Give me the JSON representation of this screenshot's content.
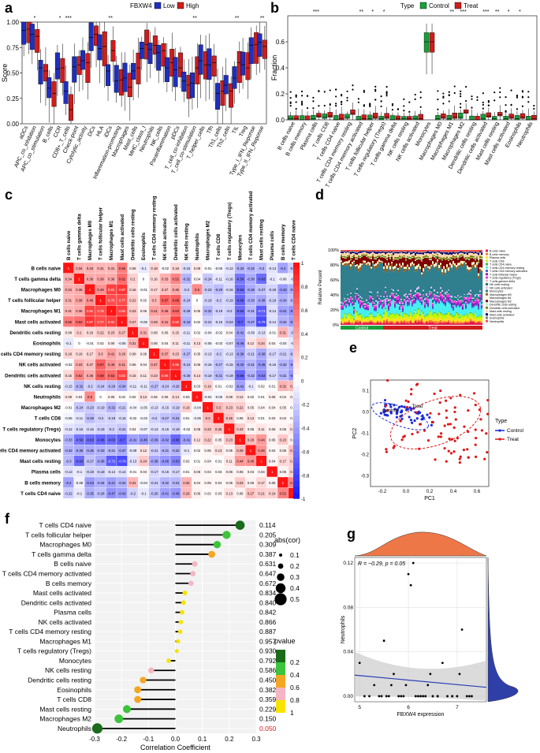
{
  "panel_labels": {
    "a": "a",
    "b": "b",
    "c": "c",
    "d": "d",
    "e": "e",
    "f": "f",
    "g": "g"
  },
  "chart_data": [
    {
      "panel": "a",
      "type": "box",
      "legend_title": "FBXW4",
      "series_names": [
        "Low",
        "High"
      ],
      "colors": {
        "Low": "#1f2fbf",
        "High": "#d01c1c"
      },
      "ylabel": "Score",
      "ylim": [
        0,
        1.0
      ],
      "yticks": [
        "0.00",
        "0.25",
        "0.50",
        "0.75",
        "1.00"
      ],
      "categories": [
        "aDCs",
        "APC_co_inhibition",
        "APC_co_stimulation",
        "B_cells",
        "CCR",
        "CD8+_T_cells",
        "Check-point",
        "Cytolytic_activity",
        "DCs",
        "HLA",
        "iDCs",
        "Inflammation-promoting",
        "Macrophages",
        "Mast_cells",
        "MHC_class_I",
        "Neutrophils",
        "NK_cells",
        "Parainflammation",
        "pDCs",
        "T_cell_co-inhibition",
        "T_cell_co-stimulation",
        "T_helper_cells",
        "Tfh",
        "Th1_cells",
        "Th2_cells",
        "TIL",
        "Treg",
        "Type_I_IFN_Reponse",
        "Type_II_IFN_Reponse"
      ],
      "significance": [
        "",
        "*",
        "",
        "",
        "*",
        "***",
        "",
        "",
        "",
        "",
        "**",
        "",
        "",
        "",
        "",
        "",
        "",
        "",
        "",
        "",
        "**",
        "",
        "",
        "",
        "",
        "**",
        "",
        "",
        "**"
      ],
      "low_median": [
        0.92,
        0.88,
        0.55,
        0.35,
        0.54,
        0.32,
        0.56,
        0.62,
        0.85,
        0.74,
        0.52,
        0.42,
        0.45,
        0.52,
        0.74,
        0.73,
        0.7,
        0.55,
        0.53,
        0.42,
        0.4,
        0.62,
        0.58,
        0.3,
        0.38,
        0.45,
        0.58,
        0.77,
        0.8
      ],
      "high_median": [
        0.93,
        0.86,
        0.52,
        0.3,
        0.55,
        0.14,
        0.58,
        0.6,
        0.88,
        0.76,
        0.72,
        0.43,
        0.36,
        0.55,
        0.78,
        0.77,
        0.72,
        0.6,
        0.55,
        0.38,
        0.55,
        0.58,
        0.6,
        0.32,
        0.32,
        0.6,
        0.55,
        0.78,
        0.76
      ]
    },
    {
      "panel": "b",
      "type": "box",
      "legend_title": "Type",
      "series_names": [
        "Control",
        "Treat"
      ],
      "colors": {
        "Control": "#1a9e3a",
        "Treat": "#d01c1c"
      },
      "ylabel": "Fraction",
      "ylim": [
        0,
        0.8
      ],
      "yticks": [
        "0.0",
        "0.2",
        "0.4",
        "0.6"
      ],
      "categories": [
        "B cells naive",
        "B cells memory",
        "Plasma cells",
        "T cells CD8",
        "T cells CD4 naive",
        "T cells CD4 memory resting",
        "T cells CD4 memory activated",
        "T cells follicular helper",
        "T cells regulatory (Tregs)",
        "T cells gamma delta",
        "NK cells resting",
        "NK cells activated",
        "Monocytes",
        "Macrophages M0",
        "Macrophages M1",
        "Macrophages M2",
        "Dendritic cells resting",
        "Dendritic cells activated",
        "Mast cells resting",
        "Mast cells activated",
        "Eosinophils",
        "Neutrophils"
      ],
      "significance": [
        "",
        "",
        "***",
        "",
        "",
        "",
        "**",
        "*",
        "*",
        "",
        "",
        "",
        "",
        "",
        "**",
        "***",
        "",
        "***",
        "**",
        "*",
        "*",
        ""
      ],
      "control_median": [
        0.01,
        0.0,
        0.01,
        0.02,
        0.0,
        0.02,
        0.0,
        0.01,
        0.01,
        0.0,
        0.01,
        0.01,
        0.6,
        0.01,
        0.01,
        0.02,
        0.0,
        0.01,
        0.01,
        0.01,
        0.01,
        0.0
      ],
      "treat_median": [
        0.01,
        0.0,
        0.03,
        0.03,
        0.01,
        0.05,
        0.01,
        0.02,
        0.02,
        0.01,
        0.01,
        0.01,
        0.6,
        0.02,
        0.02,
        0.06,
        0.0,
        0.03,
        0.04,
        0.02,
        0.02,
        0.01
      ]
    },
    {
      "panel": "c",
      "type": "heatmap",
      "colorbar_ticks": [
        "1",
        "0.8",
        "0.6",
        "0.4",
        "0.2",
        "0",
        "-0.2",
        "-0.4",
        "-0.6",
        "-0.8",
        "-1"
      ],
      "labels": [
        "B cells naive",
        "T cells gamma delta",
        "Macrophages M0",
        "T cells follicular helper",
        "Macrophages M1",
        "Mast cells activated",
        "Dendritic cells resting",
        "Eosinophils",
        "T cells CD4 memory resting",
        "NK cells activated",
        "Dendritic cells activated",
        "NK cells resting",
        "Neutrophils",
        "Macrophages M2",
        "T cells CD8",
        "T cells regulatory (Tregs)",
        "Monocytes",
        "T cells CD4 memory activated",
        "Mast cells resting",
        "Plasma cells",
        "B cells memory",
        "T cells CD4 naive"
      ]
    },
    {
      "panel": "d",
      "type": "stacked-bar",
      "ylabel": "Relative Percent",
      "yticks": [
        "100%",
        "80%",
        "60%",
        "40%",
        "20%",
        "0%"
      ],
      "groups": [
        "Control",
        "Treat"
      ],
      "legend": [
        "B cells naive",
        "B cells memory",
        "Plasma cells",
        "T cells CD8",
        "T cells CD4 naive",
        "T cells CD4 memory resting",
        "T cells CD4 memory activated",
        "T cells follicular helper",
        "T cells regulatory (Tregs)",
        "T cells gamma delta",
        "NK cells resting",
        "NK cells activated",
        "Monocytes",
        "Macrophages M0",
        "Macrophages M1",
        "Macrophages M2",
        "Dendritic cells resting",
        "Dendritic cells activated",
        "Mast cells resting",
        "Mast cells activated",
        "Eosinophils",
        "Neutrophils"
      ],
      "colors": [
        "#e6194b",
        "#f58231",
        "#ffe119",
        "#bcf60c",
        "#3cb44b",
        "#46f0f0",
        "#4363d8",
        "#911eb4",
        "#f032e6",
        "#fabebe",
        "#008080",
        "#e6beff",
        "#2f7f8f",
        "#9a6324",
        "#fffac8",
        "#800000",
        "#aaffc3",
        "#808000",
        "#ffd8b1",
        "#000075",
        "#808080",
        "#ff4d4d"
      ]
    },
    {
      "panel": "e",
      "type": "scatter",
      "xlabel": "PC1",
      "ylabel": "PC2",
      "xticks": [
        "-0.2",
        "0.0",
        "0.2",
        "0.4",
        "0.6"
      ],
      "yticks": [
        "0.1",
        "0.0",
        "-0.1",
        "-0.2",
        "-0.3"
      ],
      "legend_title": "Type",
      "legend": [
        "Control",
        "Treat"
      ],
      "group_labels": [
        "Control",
        "Treat"
      ],
      "colors": {
        "Control": "#1a2bd9",
        "Treat": "#e01818"
      }
    },
    {
      "panel": "f",
      "type": "lollipop",
      "xlabel": "Correlation Coefficient",
      "xlim": [
        -0.3,
        0.3
      ],
      "xticks": [
        "-0.3",
        "-0.2",
        "-0.1",
        "0.0",
        "0.1",
        "0.2",
        "0.3"
      ],
      "size_legend_title": "abs(cor)",
      "size_legend": [
        "0.1",
        "0.2",
        "0.3",
        "0.4",
        "0.5"
      ],
      "color_legend_title": "pvalue",
      "color_legend": [
        "0.2",
        "0.4",
        "0.6",
        "0.8",
        "1"
      ],
      "color_scale": [
        "#1a6b1a",
        "#3cc43c",
        "#f5a623",
        "#f4b6c2",
        "#f7e300"
      ],
      "cells": [
        "T cells CD4 naive",
        "T cells follicular helper",
        "Macrophages M0",
        "T cells gamma delta",
        "B cells naive",
        "T cells CD4 memory activated",
        "B cells memory",
        "Mast cells activated",
        "Dendritic cells activated",
        "Plasma cells",
        "NK cells activated",
        "T cells CD4 memory resting",
        "Macrophages M1",
        "T cells regulatory (Tregs)",
        "Monocytes",
        "NK cells resting",
        "Dendritic cells resting",
        "Eosinophils",
        "T cells CD8",
        "Mast cells resting",
        "Macrophages M2",
        "Neutrophils"
      ],
      "cor": [
        0.24,
        0.19,
        0.155,
        0.135,
        0.072,
        0.065,
        0.058,
        0.035,
        0.03,
        0.025,
        0.02,
        0.018,
        0.01,
        0.005,
        -0.025,
        -0.09,
        -0.12,
        -0.14,
        -0.14,
        -0.18,
        -0.21,
        -0.29
      ],
      "pvalue": [
        "0.114",
        "0.205",
        "0.309",
        "0.387",
        "0.631",
        "0.647",
        "0.672",
        "0.834",
        "0.840",
        "0.842",
        "0.866",
        "0.887",
        "0.957",
        "0.930",
        "0.792",
        "0.586",
        "0.450",
        "0.382",
        "0.359",
        "0.229",
        "0.150",
        "0.050"
      ]
    },
    {
      "panel": "g",
      "type": "scatter",
      "xlabel": "FBXW4 expression",
      "ylabel": "Neutrophils",
      "annotation": "R = −0.29, p = 0.05",
      "xticks": [
        "5",
        "6",
        "7"
      ],
      "yticks": [
        "0.00",
        "0.04",
        "0.08",
        "0.12"
      ],
      "x": [
        5.0,
        5.1,
        5.2,
        5.3,
        5.4,
        5.5,
        5.6,
        5.7,
        5.8,
        5.9,
        6.0,
        6.1,
        6.2,
        6.3,
        6.4,
        6.5,
        6.6,
        6.7,
        6.8,
        6.9,
        7.0,
        7.1,
        7.2,
        7.3,
        5.45,
        5.65,
        5.85,
        6.05,
        6.25,
        6.45,
        6.6,
        6.15,
        5.95,
        5.55,
        6.35,
        7.05,
        7.25,
        6.9
      ],
      "y": [
        0.03,
        0.0,
        0.0,
        0.01,
        0.0,
        0.05,
        0.0,
        0.02,
        0.0,
        0.0,
        0.11,
        0.12,
        0.0,
        0.0,
        0.01,
        0.0,
        0.0,
        0.03,
        0.0,
        0.0,
        0.0,
        0.06,
        0.0,
        0.0,
        0.0,
        0.01,
        0.0,
        0.1,
        0.0,
        0.02,
        0.0,
        0.0,
        0.01,
        0.0,
        0.0,
        0.02,
        0.0,
        0.0
      ],
      "fit": {
        "x": [
          4.9,
          7.6
        ],
        "y": [
          0.019,
          0.008
        ]
      }
    }
  ],
  "heatmap_rows": [
    [
      "1",
      "0.34",
      "0.34",
      "0.31",
      "0.31",
      "0.56",
      "0.08",
      "-0.1",
      "0.18",
      "-0.02",
      "0.16",
      "-0.15",
      "0.09",
      "-0.01",
      "-0.05",
      "-0.12",
      "-0.33",
      "-0.32",
      "-0.3",
      "-0.13",
      "-0.4",
      "-0.22"
    ],
    [
      "0.34",
      "1",
      "0.36",
      "0.38",
      "0.36",
      "0.62",
      "0.2",
      "0",
      "0.16",
      "0.33",
      "0.52",
      "-0.32",
      "0.04",
      "-0.24",
      "-0.11",
      "-0.16",
      "-0.59",
      "-0.36",
      "-0.63",
      "-0.1",
      "-0.06",
      "-0.1"
    ],
    [
      "0.34",
      "0.36",
      "1",
      "0.46",
      "0.81",
      "0.87",
      "0.16",
      "-0.01",
      "0.17",
      "0.27",
      "0.36",
      "-0.2",
      "0.5",
      "-0.23",
      "-0.29",
      "-0.16",
      "-0.63",
      "-0.36",
      "-0.27",
      "-0.19",
      "-0.43",
      "-0.35"
    ],
    [
      "0.31",
      "0.38",
      "0.46",
      "1",
      "0.76",
      "0.77",
      "0.22",
      "0.02",
      "0.3",
      "0.67",
      "0.68",
      "-0.24",
      "0",
      "-0.19",
      "-0.2",
      "-0.19",
      "-0.66",
      "-0.33",
      "-0.38",
      "-0.19",
      "-0.34",
      "-0.28"
    ],
    [
      "0.31",
      "0.36",
      "0.81",
      "0.76",
      "1",
      "0.82",
      "0.23",
      "0.06",
      "0.41",
      "0.46",
      "0.63",
      "-0.28",
      "0.05",
      "-0.32",
      "-0.19",
      "-0.2",
      "-0.63",
      "-0.31",
      "-0.71",
      "-0.14",
      "-0.41",
      "-0.47"
    ],
    [
      "0.56",
      "0.62",
      "0.87",
      "0.77",
      "0.82",
      "1",
      "0.27",
      "-0.06",
      "0.29",
      "0.41",
      "0.82",
      "-0.34",
      "0.02",
      "-0.21",
      "-0.15",
      "-0.24",
      "-0.7",
      "-0.37",
      "-0.79",
      "-0.14",
      "-0.34",
      "-0.42"
    ],
    [
      "0.08",
      "0.2",
      "0.16",
      "0.22",
      "0.23",
      "0.27",
      "1",
      "0.31",
      "0.08",
      "0.06",
      "0.15",
      "-0.11",
      "0.02",
      "-0.04",
      "-0.02",
      "0.04",
      "-0.41",
      "-0.09",
      "-0.13",
      "-0.01",
      "0.31",
      "-0.2"
    ],
    [
      "-0.1",
      "0",
      "-0.01",
      "0.02",
      "0.06",
      "-0.06",
      "0.31",
      "1",
      "0.06",
      "0.04",
      "0.11",
      "-0.11",
      "0.13",
      "-0.05",
      "-0.03",
      "-0.07",
      "-0.46",
      "0.12",
      "0.24",
      "0.04",
      "-0.04",
      "-0.1"
    ],
    [
      "0.18",
      "0.16",
      "0.17",
      "0.3",
      "0.41",
      "0.29",
      "0.08",
      "0.06",
      "1",
      "0.37",
      "0.23",
      "-0.27",
      "0.05",
      "-0.13",
      "-0.2",
      "-0.13",
      "-0.39",
      "-0.21",
      "-0.38",
      "-0.17",
      "-0.21",
      "-0.26"
    ],
    [
      "-0.02",
      "0.33",
      "0.27",
      "0.67",
      "0.46",
      "0.41",
      "0.06",
      "0.04",
      "0.37",
      "1",
      "0.85",
      "-0.24",
      "0.06",
      "-0.15",
      "-0.27",
      "-0.15",
      "-0.42",
      "-0.31",
      "-0.45",
      "-0.15",
      "-0.32",
      "-0.41"
    ],
    [
      "0.16",
      "0.52",
      "0.36",
      "0.68",
      "0.63",
      "0.82",
      "0.15",
      "0.11",
      "0.23",
      "0.85",
      "1",
      "-0.26",
      "0.14",
      "-0.19",
      "-0.31",
      "-0.19",
      "-0.66",
      "-0.32",
      "-0.53",
      "-0.17",
      "-0.31",
      "-0.45"
    ],
    [
      "-0.15",
      "-0.32",
      "-0.2",
      "-0.24",
      "-0.28",
      "-0.34",
      "-0.11",
      "-0.11",
      "-0.27",
      "-0.24",
      "-0.26",
      "1",
      "0.03",
      "0.19",
      "0.01",
      "-0.02",
      "-0.41",
      "-0.1",
      "0.02",
      "0.01",
      "0.32",
      "0.29"
    ],
    [
      "0.09",
      "0.04",
      "0.5",
      "0",
      "0.05",
      "0.02",
      "0.02",
      "0.13",
      "0.05",
      "0.06",
      "0.14",
      "0.03",
      "1",
      "-0.04",
      "-0.05",
      "0.08",
      "0.12",
      "0.02",
      "0.01",
      "0.06",
      "0.04",
      "0.06"
    ],
    [
      "-0.01",
      "-0.24",
      "-0.23",
      "-0.19",
      "-0.32",
      "-0.21",
      "-0.04",
      "-0.05",
      "-0.13",
      "-0.15",
      "-0.19",
      "0.19",
      "-0.04",
      "1",
      "0.3",
      "0.23",
      "0.22",
      "0.05",
      "0.04",
      "0.04",
      "0.05",
      "0.02"
    ],
    [
      "-0.05",
      "-0.11",
      "-0.29",
      "-0.2",
      "-0.19",
      "-0.15",
      "-0.02",
      "-0.03",
      "-0.2",
      "-0.27",
      "-0.31",
      "0.01",
      "-0.05",
      "0.3",
      "1",
      "0.26",
      "0.05",
      "0.13",
      "0.01",
      "0.03",
      "0.04",
      "0.03"
    ],
    [
      "-0.12",
      "-0.16",
      "-0.16",
      "-0.19",
      "-0.2",
      "-0.24",
      "0.04",
      "-0.07",
      "-0.13",
      "-0.15",
      "-0.19",
      "-0.02",
      "0.08",
      "0.23",
      "0.26",
      "1",
      "0.23",
      "0.05",
      "0.11",
      "0.06",
      "0.05",
      "0.13"
    ],
    [
      "-0.33",
      "-0.59",
      "-0.63",
      "-0.66",
      "-0.63",
      "-0.7",
      "-0.41",
      "-0.46",
      "-0.39",
      "-0.42",
      "-0.66",
      "-0.41",
      "0.12",
      "0.22",
      "0.05",
      "0.23",
      "1",
      "0.29",
      "0.44",
      "0.06",
      "0.23",
      "0.06"
    ],
    [
      "-0.32",
      "-0.36",
      "-0.36",
      "-0.33",
      "-0.31",
      "-0.37",
      "-0.09",
      "0.12",
      "-0.21",
      "-0.31",
      "-0.32",
      "-0.1",
      "0.02",
      "0.05",
      "0.13",
      "0.05",
      "0.29",
      "1",
      "0.46",
      "0.04",
      "0.06",
      "0.27"
    ],
    [
      "-0.3",
      "-0.63",
      "-0.27",
      "-0.38",
      "-0.71",
      "-0.79",
      "-0.13",
      "0.24",
      "-0.38",
      "-0.45",
      "-0.53",
      "0.02",
      "0.01",
      "0.04",
      "0.01",
      "0.11",
      "0.44",
      "0.46",
      "1",
      "0.04",
      "0.17",
      "0.21"
    ],
    [
      "-0.13",
      "-0.1",
      "-0.19",
      "-0.19",
      "-0.14",
      "-0.14",
      "-0.01",
      "0.04",
      "-0.17",
      "-0.15",
      "-0.17",
      "0.01",
      "0.06",
      "0.04",
      "0.03",
      "0.06",
      "0.06",
      "0.04",
      "0.04",
      "1",
      "0.05",
      "0.19"
    ],
    [
      "-0.4",
      "-0.06",
      "-0.43",
      "-0.34",
      "-0.41",
      "-0.34",
      "0.31",
      "-0.04",
      "-0.21",
      "-0.32",
      "-0.31",
      "0.32",
      "0.04",
      "0.05",
      "0.04",
      "0.05",
      "0.23",
      "0.06",
      "0.17",
      "0.05",
      "1",
      "0.52"
    ],
    [
      "-0.22",
      "-0.1",
      "-0.35",
      "-0.28",
      "-0.47",
      "-0.42",
      "-0.2",
      "-0.1",
      "-0.26",
      "-0.41",
      "-0.45",
      "0.29",
      "0.06",
      "0.02",
      "0.03",
      "0.13",
      "0.06",
      "0.27",
      "0.21",
      "0.19",
      "0.52",
      "1"
    ]
  ]
}
